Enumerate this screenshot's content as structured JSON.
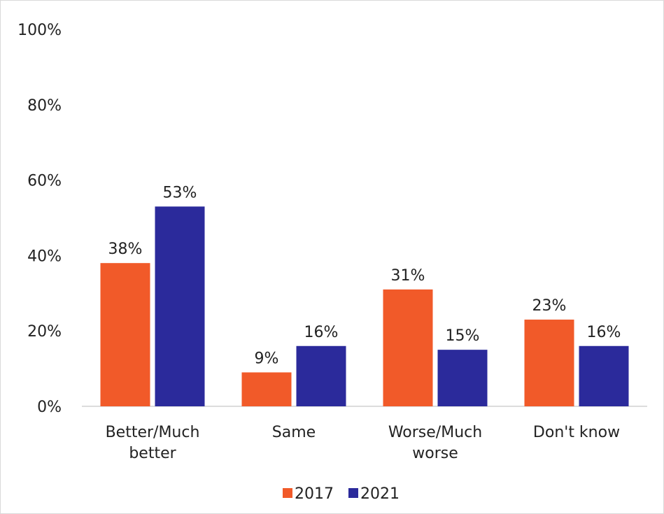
{
  "chart_data": {
    "type": "bar",
    "title": "",
    "xlabel": "",
    "ylabel": "",
    "ylim": [
      0,
      100
    ],
    "yticks": [
      0,
      20,
      40,
      60,
      80,
      100
    ],
    "ytick_labels": [
      "0%",
      "20%",
      "40%",
      "60%",
      "80%",
      "100%"
    ],
    "grid": false,
    "legend_position": "bottom",
    "categories": [
      [
        "Better/Much",
        "better"
      ],
      [
        "Same"
      ],
      [
        "Worse/Much",
        "worse"
      ],
      [
        "Don't know"
      ]
    ],
    "series": [
      {
        "name": "2017",
        "color": "#f15a29",
        "values": [
          38,
          9,
          31,
          23
        ],
        "labels": [
          "38%",
          "9%",
          "31%",
          "23%"
        ]
      },
      {
        "name": "2021",
        "color": "#2b2a9b",
        "values": [
          53,
          16,
          15,
          16
        ],
        "labels": [
          "53%",
          "16%",
          "15%",
          "16%"
        ]
      }
    ]
  }
}
